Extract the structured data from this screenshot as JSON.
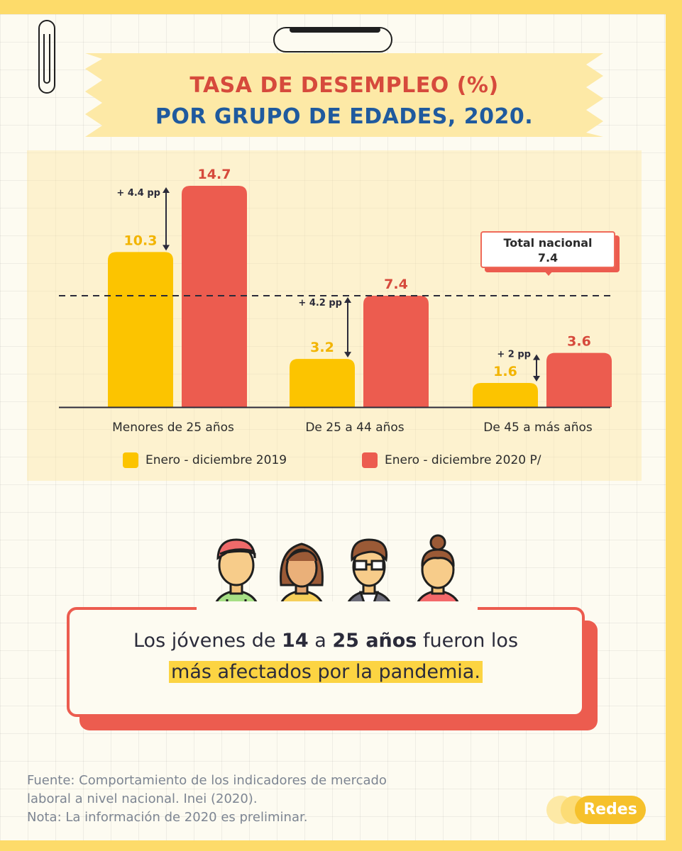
{
  "title_line1": "TASA DE DESEMPLEO (%)",
  "title_line2": "POR GRUPO DE EDADES, 2020.",
  "colors": {
    "series_2019": "#fcc400",
    "series_2020": "#ec5c4f",
    "title_red": "#d64a3c",
    "title_blue": "#1f5a9e",
    "banner": "#fde9a6",
    "border": "#fddb6a"
  },
  "chart_data": {
    "type": "bar",
    "categories": [
      "Menores de 25 años",
      "De 25 a 44 años",
      "De 45 a más años"
    ],
    "series": [
      {
        "name": "Enero - diciembre 2019",
        "values": [
          10.3,
          3.2,
          1.6
        ]
      },
      {
        "name": "Enero - diciembre 2020 P/",
        "values": [
          14.7,
          7.4,
          3.6
        ]
      }
    ],
    "data_labels": [
      [
        "10.3",
        "3.2",
        "1.6"
      ],
      [
        "14.7",
        "7.4",
        "3.6"
      ]
    ],
    "differences": [
      "+ 4.4 pp",
      "+ 4.2 pp",
      "+ 2 pp"
    ],
    "reference_line": {
      "value": 7.4,
      "label": "Total nacional",
      "value_label": "7.4",
      "style": "dashed"
    },
    "legend_position": "bottom",
    "ylim": [
      0,
      15
    ],
    "grid": false,
    "xlabel": "",
    "ylabel": ""
  },
  "message": {
    "line1_a": "Los jóvenes de ",
    "line1_b": "14",
    "line1_c": " a ",
    "line1_d": "25 años",
    "line1_e": " fueron los",
    "line2": "más afectados por la pandemia."
  },
  "source": {
    "line1": "Fuente: Comportamiento de los indicadores de mercado",
    "line2": "laboral a nivel nacional. Inei (2020).",
    "line3": "Nota: La información de 2020 es preliminar."
  },
  "logo_text": "Redes",
  "icons": [
    "young-man-cap-icon",
    "woman-icon",
    "man-glasses-icon",
    "woman-bun-icon"
  ]
}
